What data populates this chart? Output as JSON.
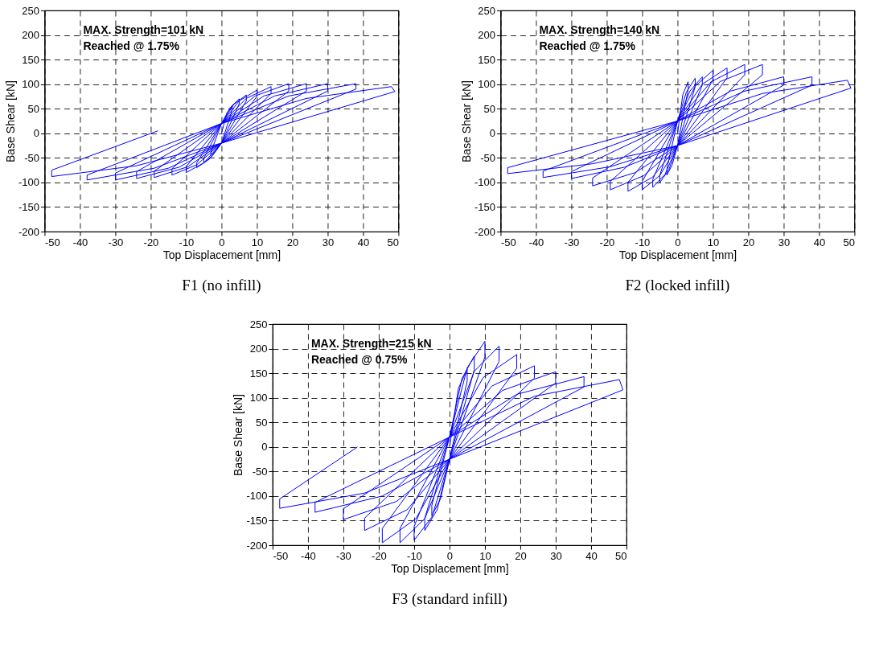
{
  "chart_data": [
    {
      "type": "line",
      "title": "F1 (no infill)",
      "xlabel": "Top Displacement [mm]",
      "ylabel": "Base Shear [kN]",
      "annotations": [
        "MAX. Strength=101 kN",
        "Reached @ 1.75%"
      ],
      "xlim": [
        -50,
        50
      ],
      "xticks": [
        -50,
        -40,
        -30,
        -20,
        -10,
        0,
        10,
        20,
        30,
        40,
        50
      ],
      "ylim": [
        -200,
        250
      ],
      "yticks": [
        -200,
        -150,
        -100,
        -50,
        0,
        50,
        100,
        150,
        200,
        250
      ],
      "grid": true,
      "marker": "none",
      "line_style": "solid",
      "series": [
        {
          "color": "#0000ff",
          "x": [
            0,
            1.5,
            3,
            3,
            0,
            -1.5,
            -3,
            -3,
            0,
            2.5,
            5,
            5,
            0,
            -2.5,
            -5,
            -5,
            0,
            3.5,
            7,
            7,
            0,
            -3.5,
            -7,
            -7,
            0,
            5,
            10,
            10,
            0,
            -5,
            -10,
            -10,
            0,
            7,
            14,
            14,
            0,
            -7,
            -14,
            -14,
            0,
            9.5,
            19,
            19,
            0,
            -9.5,
            -19,
            -19,
            0,
            12,
            24,
            24,
            0,
            -12,
            -24,
            -24,
            0,
            15,
            30,
            30,
            0,
            -15,
            -30,
            -30,
            0,
            19,
            38,
            38,
            0,
            -19,
            -38,
            -38,
            0,
            24,
            48,
            49,
            0,
            -24,
            -48,
            -48,
            -18
          ],
          "values": [
            0,
            41,
            55,
            47,
            -20,
            -34,
            -45,
            -38,
            20,
            53,
            70,
            60,
            -20,
            -45,
            -60,
            -51,
            20,
            59,
            78,
            66,
            -20,
            -53,
            -70,
            -60,
            20,
            66,
            88,
            75,
            -20,
            -60,
            -80,
            -68,
            20,
            71,
            95,
            81,
            -20,
            -64,
            -85,
            -72,
            20,
            76,
            101,
            86,
            -20,
            -68,
            -90,
            -77,
            20,
            76,
            101,
            86,
            -20,
            -69,
            -92,
            -78,
            20,
            76,
            101,
            86,
            -20,
            -71,
            -95,
            -81,
            20,
            76,
            101,
            90,
            -20,
            -71,
            -95,
            -85,
            20,
            71,
            95,
            85,
            -20,
            -66,
            -88,
            -75,
            5
          ]
        }
      ]
    },
    {
      "type": "line",
      "title": "F2 (locked infill)",
      "xlabel": "Top Displacement [mm]",
      "ylabel": "Base Shear [kN]",
      "annotations": [
        "MAX. Strength=140 kN",
        "Reached @ 1.75%"
      ],
      "xlim": [
        -50,
        50
      ],
      "xticks": [
        -50,
        -40,
        -30,
        -20,
        -10,
        0,
        10,
        20,
        30,
        40,
        50
      ],
      "ylim": [
        -200,
        250
      ],
      "yticks": [
        -200,
        -150,
        -100,
        -50,
        0,
        50,
        100,
        150,
        200,
        250
      ],
      "grid": true,
      "marker": "none",
      "line_style": "solid",
      "series": [
        {
          "color": "#0000ff",
          "x": [
            0,
            1.5,
            3,
            3,
            0,
            -1.5,
            -3,
            -3,
            0,
            2.5,
            5,
            5,
            0,
            -2.5,
            -5,
            -5,
            0,
            3.5,
            7,
            7,
            0,
            -3.5,
            -7,
            -7,
            0,
            5,
            10,
            10,
            0,
            -5,
            -10,
            -10,
            0,
            7,
            14,
            14,
            0,
            -7,
            -14,
            -14,
            0,
            9.5,
            19,
            19,
            0,
            -9.5,
            -19,
            -19,
            0,
            12,
            24,
            24,
            0,
            -12,
            -24,
            -24,
            0,
            15,
            30,
            30,
            0,
            -15,
            -30,
            -30,
            0,
            19,
            38,
            38,
            0,
            -19,
            -38,
            -38,
            0,
            24,
            48,
            49,
            0,
            -24,
            -48,
            -48,
            0
          ],
          "values": [
            0,
            79,
            105,
            89,
            -25,
            -64,
            -85,
            -72,
            25,
            84,
            112,
            95,
            -25,
            -75,
            -100,
            -85,
            25,
            86,
            115,
            98,
            -25,
            -83,
            -110,
            -94,
            25,
            96,
            128,
            109,
            -25,
            -86,
            -115,
            -98,
            25,
            100,
            133,
            113,
            -25,
            -89,
            -118,
            -100,
            25,
            105,
            140,
            119,
            -25,
            -86,
            -115,
            -98,
            25,
            105,
            140,
            119,
            -25,
            -80,
            -107,
            -91,
            25,
            86,
            115,
            98,
            -25,
            -69,
            -92,
            -78,
            25,
            86,
            115,
            98,
            -25,
            -68,
            -90,
            -77,
            25,
            81,
            108,
            92,
            -25,
            -62,
            -82,
            -70,
            25
          ]
        }
      ]
    },
    {
      "type": "line",
      "title": "F3 (standard infill)",
      "xlabel": "Top Displacement [mm]",
      "ylabel": "Base Shear [kN]",
      "annotations": [
        "MAX. Strength=215 kN",
        "Reached @ 0.75%"
      ],
      "xlim": [
        -50,
        50
      ],
      "xticks": [
        -50,
        -40,
        -30,
        -20,
        -10,
        0,
        10,
        20,
        30,
        40,
        50
      ],
      "ylim": [
        -200,
        250
      ],
      "yticks": [
        -200,
        -150,
        -100,
        -50,
        0,
        50,
        100,
        150,
        200,
        250
      ],
      "grid": true,
      "marker": "none",
      "line_style": "solid",
      "series": [
        {
          "color": "#0000ff",
          "x": [
            0,
            2.5,
            5,
            5,
            0,
            -2.5,
            -5,
            -5,
            0,
            3.5,
            7,
            7,
            0,
            -3.5,
            -7,
            -7,
            0,
            5,
            10,
            10,
            0,
            -5,
            -10,
            -10,
            0,
            7,
            14,
            14,
            0,
            -7,
            -14,
            -14,
            0,
            9.5,
            19,
            19,
            0,
            -9.5,
            -19,
            -19,
            0,
            12,
            24,
            24,
            0,
            -12,
            -24,
            -24,
            0,
            15,
            30,
            30,
            0,
            -15,
            -30,
            -30,
            0,
            19,
            38,
            38,
            0,
            -19,
            -38,
            -38,
            0,
            24,
            48,
            49,
            0,
            -24,
            -48,
            -48,
            -26
          ],
          "values": [
            0,
            119,
            158,
            134,
            -25,
            -105,
            -140,
            -119,
            20,
            139,
            185,
            157,
            -25,
            -128,
            -170,
            -145,
            20,
            161,
            215,
            183,
            -25,
            -143,
            -190,
            -162,
            20,
            154,
            205,
            174,
            -25,
            -146,
            -195,
            -166,
            20,
            141,
            188,
            160,
            -25,
            -146,
            -195,
            -166,
            20,
            124,
            165,
            140,
            -25,
            -128,
            -170,
            -145,
            20,
            115,
            153,
            130,
            -25,
            -111,
            -148,
            -126,
            20,
            107,
            143,
            122,
            -25,
            -100,
            -133,
            -113,
            20,
            103,
            137,
            116,
            -25,
            -94,
            -125,
            -106,
            0
          ]
        }
      ]
    }
  ]
}
